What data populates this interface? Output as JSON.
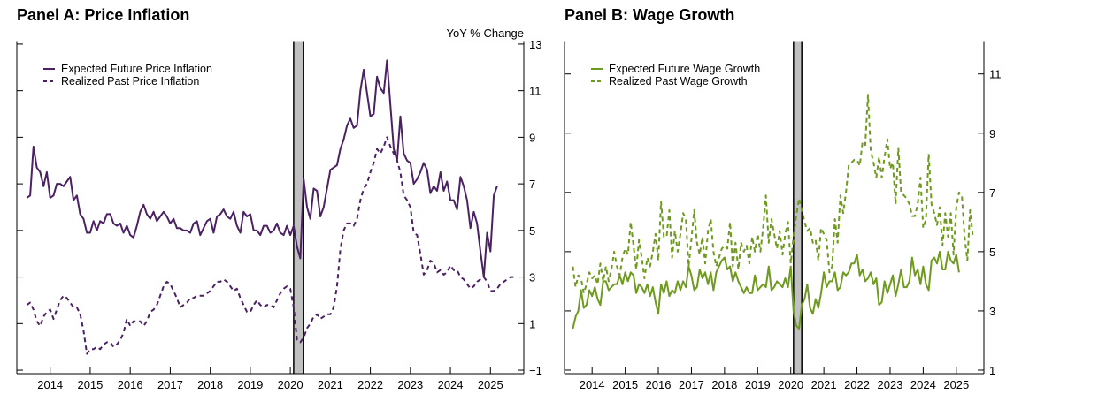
{
  "chart_data": [
    {
      "type": "line",
      "title": "Panel A: Price Inflation",
      "ylabel": "YoY % Change",
      "xlim": [
        "2013-03",
        "2025-11"
      ],
      "ylim": [
        -1.15,
        13.13
      ],
      "yticks": [
        -1,
        1,
        3,
        5,
        7,
        9,
        11,
        13
      ],
      "xticks": [
        "2014",
        "2015",
        "2016",
        "2017",
        "2018",
        "2019",
        "2020",
        "2021",
        "2022",
        "2023",
        "2024",
        "2025"
      ],
      "y_axis_side": "right",
      "legend": "top-left",
      "grid": false,
      "recession_shading": [
        "2020-02",
        "2020-04"
      ],
      "series": [
        {
          "name": "Expected Future Price Inflation",
          "style": "solid",
          "color": "#4b2163",
          "start": "2013-06",
          "values": [
            6.4,
            6.5,
            8.6,
            7.7,
            7.5,
            6.9,
            7.5,
            6.4,
            6.5,
            7.0,
            7.0,
            6.9,
            7.1,
            7.3,
            6.3,
            6.5,
            5.7,
            5.5,
            4.9,
            4.9,
            5.4,
            5.0,
            5.4,
            5.3,
            5.7,
            5.7,
            5.3,
            5.2,
            5.3,
            4.9,
            5.2,
            4.8,
            4.7,
            5.2,
            5.8,
            6.1,
            5.7,
            5.5,
            5.8,
            5.4,
            5.6,
            5.8,
            5.6,
            5.3,
            5.5,
            5.1,
            5.1,
            5.0,
            5.0,
            4.9,
            5.3,
            5.4,
            4.8,
            5.1,
            5.4,
            5.5,
            4.9,
            5.6,
            5.7,
            5.9,
            5.6,
            5.5,
            5.8,
            5.2,
            4.9,
            5.8,
            5.6,
            5.7,
            5.0,
            5.0,
            4.8,
            5.2,
            5.2,
            4.9,
            5.0,
            5.3,
            4.9,
            4.8,
            5.2,
            4.8,
            5.2,
            4.3,
            3.8,
            7.2,
            6.0,
            5.5,
            6.8,
            6.7,
            5.6,
            6.0,
            6.8,
            7.6,
            7.7,
            7.8,
            8.5,
            8.9,
            9.5,
            9.8,
            9.4,
            9.5,
            11.0,
            11.9,
            10.9,
            9.9,
            10.0,
            11.6,
            11.1,
            10.9,
            12.3,
            10.4,
            8.5,
            8.0,
            9.9,
            8.3,
            8.0,
            7.9,
            7.0,
            7.2,
            7.5,
            7.9,
            7.6,
            6.6,
            6.9,
            6.7,
            7.5,
            6.7,
            7.1,
            6.3,
            6.3,
            5.9,
            7.3,
            6.9,
            6.3,
            5.1,
            5.8,
            5.3,
            4.1,
            3.0,
            4.9,
            4.1,
            6.5,
            6.9
          ]
        },
        {
          "name": "Realized Past Price Inflation",
          "style": "dashed",
          "color": "#4b2163",
          "start": "2013-06",
          "values": [
            1.8,
            1.9,
            1.6,
            1.1,
            0.9,
            1.3,
            1.5,
            1.6,
            1.2,
            1.6,
            2.0,
            2.2,
            2.1,
            1.9,
            1.7,
            1.7,
            1.4,
            0.7,
            -0.3,
            -0.1,
            -0.1,
            0.0,
            -0.1,
            0.1,
            0.2,
            0.2,
            0.0,
            0.1,
            0.3,
            0.6,
            1.2,
            0.9,
            1.1,
            1.1,
            1.1,
            0.9,
            1.1,
            1.5,
            1.6,
            1.8,
            2.2,
            2.6,
            2.8,
            2.7,
            2.4,
            2.1,
            1.7,
            1.8,
            1.9,
            2.1,
            2.1,
            2.2,
            2.2,
            2.2,
            2.3,
            2.4,
            2.6,
            2.8,
            2.8,
            2.9,
            2.8,
            2.6,
            2.4,
            2.5,
            2.1,
            1.8,
            1.5,
            1.5,
            1.8,
            2.0,
            1.8,
            1.7,
            1.8,
            1.8,
            1.7,
            2.0,
            2.3,
            2.5,
            2.6,
            2.5,
            1.7,
            0.3,
            0.2,
            0.4,
            0.8,
            1.0,
            1.3,
            1.4,
            1.2,
            1.3,
            1.4,
            1.4,
            1.7,
            2.6,
            4.2,
            5.0,
            5.3,
            5.3,
            5.2,
            5.5,
            6.3,
            6.8,
            7.0,
            7.5,
            7.9,
            8.5,
            8.3,
            8.6,
            9.0,
            8.6,
            8.3,
            8.0,
            7.5,
            6.5,
            6.3,
            6.0,
            4.9,
            4.8,
            4.0,
            3.1,
            3.3,
            3.7,
            3.6,
            3.2,
            3.3,
            3.1,
            3.2,
            3.5,
            3.3,
            3.3,
            3.0,
            2.9,
            2.7,
            2.5,
            2.6,
            2.8,
            2.9,
            3.0,
            2.8,
            2.4,
            2.4,
            2.5,
            2.7,
            2.8,
            2.9,
            3.0,
            3.0
          ]
        }
      ]
    },
    {
      "type": "line",
      "title": "Panel B: Wage Growth",
      "ylabel": "",
      "xlim": [
        "2013-03",
        "2025-11"
      ],
      "ylim": [
        0.88,
        12.11
      ],
      "yticks": [
        1,
        3,
        5,
        7,
        9,
        11
      ],
      "xticks": [
        "2014",
        "2015",
        "2016",
        "2017",
        "2018",
        "2019",
        "2020",
        "2021",
        "2022",
        "2023",
        "2024",
        "2025"
      ],
      "y_axis_side": "right",
      "legend": "top-left",
      "grid": false,
      "recession_shading": [
        "2020-02",
        "2020-04"
      ],
      "series": [
        {
          "name": "Expected Future Wage Growth",
          "style": "solid",
          "color": "#6e9a1e",
          "start": "2013-06",
          "values": [
            2.4,
            2.8,
            3.0,
            3.7,
            3.1,
            3.2,
            3.7,
            3.5,
            3.8,
            3.4,
            3.2,
            4.0,
            4.0,
            3.7,
            3.8,
            3.9,
            3.9,
            4.2,
            3.9,
            4.3,
            4.0,
            4.3,
            4.2,
            3.6,
            3.9,
            3.8,
            3.6,
            3.9,
            3.5,
            3.8,
            3.3,
            2.9,
            3.9,
            3.6,
            4.0,
            3.5,
            3.7,
            3.6,
            4.0,
            3.7,
            4.0,
            3.8,
            4.5,
            4.2,
            3.7,
            3.8,
            4.4,
            4.1,
            4.3,
            3.9,
            4.3,
            3.7,
            4.3,
            4.5,
            4.7,
            4.8,
            4.4,
            4.5,
            4.0,
            4.3,
            4.0,
            3.8,
            3.6,
            3.8,
            3.6,
            3.6,
            4.2,
            3.7,
            3.8,
            3.9,
            3.8,
            4.5,
            3.7,
            3.8,
            4.0,
            3.9,
            3.8,
            4.1,
            3.8,
            4.5,
            3.0,
            2.5,
            2.4,
            3.2,
            3.4,
            3.9,
            3.1,
            2.9,
            3.4,
            3.1,
            3.6,
            4.3,
            3.8,
            4.0,
            4.0,
            4.3,
            3.7,
            3.8,
            4.3,
            4.2,
            4.3,
            4.6,
            4.6,
            4.9,
            4.2,
            4.4,
            4.0,
            4.1,
            4.3,
            3.9,
            4.1,
            3.2,
            3.3,
            4.0,
            3.6,
            3.9,
            4.2,
            3.5,
            3.9,
            4.4,
            3.8,
            3.8,
            4.0,
            4.8,
            4.2,
            4.4,
            3.9,
            4.5,
            3.9,
            3.7,
            4.7,
            4.8,
            4.6,
            5.0,
            4.4,
            4.4,
            5.0,
            4.7,
            4.6,
            4.9,
            4.3
          ]
        },
        {
          "name": "Realized Past Wage Growth",
          "style": "dashed",
          "color": "#6e9a1e",
          "start": "2013-06",
          "values": [
            4.5,
            3.8,
            4.2,
            4.1,
            3.6,
            3.9,
            4.3,
            4.1,
            4.2,
            3.9,
            4.6,
            4.0,
            4.5,
            4.0,
            4.4,
            5.0,
            4.5,
            4.2,
            4.8,
            5.1,
            4.9,
            6.0,
            5.2,
            4.4,
            5.4,
            4.8,
            4.1,
            4.8,
            4.5,
            5.0,
            5.6,
            4.7,
            6.7,
            5.5,
            5.5,
            6.4,
            4.8,
            5.7,
            5.0,
            5.6,
            6.3,
            6.1,
            4.5,
            5.4,
            6.4,
            5.3,
            4.9,
            5.5,
            4.6,
            5.7,
            6.1,
            5.0,
            4.5,
            4.8,
            5.1,
            5.2,
            5.1,
            6.0,
            4.5,
            5.3,
            4.4,
            5.3,
            5.0,
            5.2,
            4.6,
            5.5,
            5.0,
            5.6,
            5.0,
            5.8,
            6.9,
            5.3,
            6.1,
            5.6,
            5.1,
            5.7,
            4.9,
            5.6,
            6.0,
            4.6,
            5.5,
            6.2,
            6.8,
            6.4,
            6.0,
            5.7,
            5.8,
            5.3,
            5.4,
            4.7,
            5.8,
            5.6,
            5.4,
            4.3,
            4.5,
            6.1,
            5.3,
            6.9,
            6.3,
            7.0,
            7.9,
            8.0,
            8.1,
            8.1,
            7.9,
            8.7,
            8.6,
            10.3,
            8.4,
            8.0,
            7.5,
            8.2,
            7.5,
            8.2,
            8.8,
            7.8,
            8.0,
            6.6,
            8.5,
            7.0,
            6.9,
            6.8,
            6.6,
            6.2,
            6.2,
            6.6,
            7.5,
            5.8,
            6.1,
            8.3,
            6.6,
            6.3,
            5.9,
            6.5,
            5.2,
            6.3,
            5.5,
            6.3,
            4.9,
            6.5,
            7.0,
            6.9,
            5.5,
            4.7,
            6.4,
            5.5
          ]
        }
      ]
    }
  ]
}
